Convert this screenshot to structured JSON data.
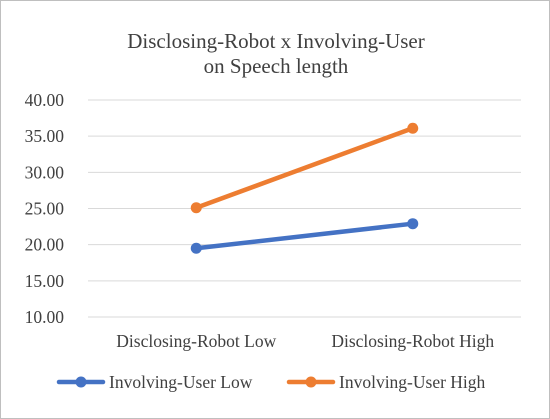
{
  "chart_data": {
    "type": "line",
    "title_lines": [
      "Disclosing-Robot x Involving-User",
      "on Speech length"
    ],
    "categories": [
      "Disclosing-Robot Low",
      "Disclosing-Robot High"
    ],
    "series": [
      {
        "name": "Involving-User Low",
        "values": [
          19.5,
          22.9
        ],
        "color": "#4472c4"
      },
      {
        "name": "Involving-User High",
        "values": [
          25.1,
          36.1
        ],
        "color": "#ed7d31"
      }
    ],
    "ylim": [
      10,
      40
    ],
    "yticks": [
      "10.00",
      "15.00",
      "20.00",
      "25.00",
      "30.00",
      "35.00",
      "40.00"
    ],
    "grid": true,
    "legend_position": "bottom"
  }
}
